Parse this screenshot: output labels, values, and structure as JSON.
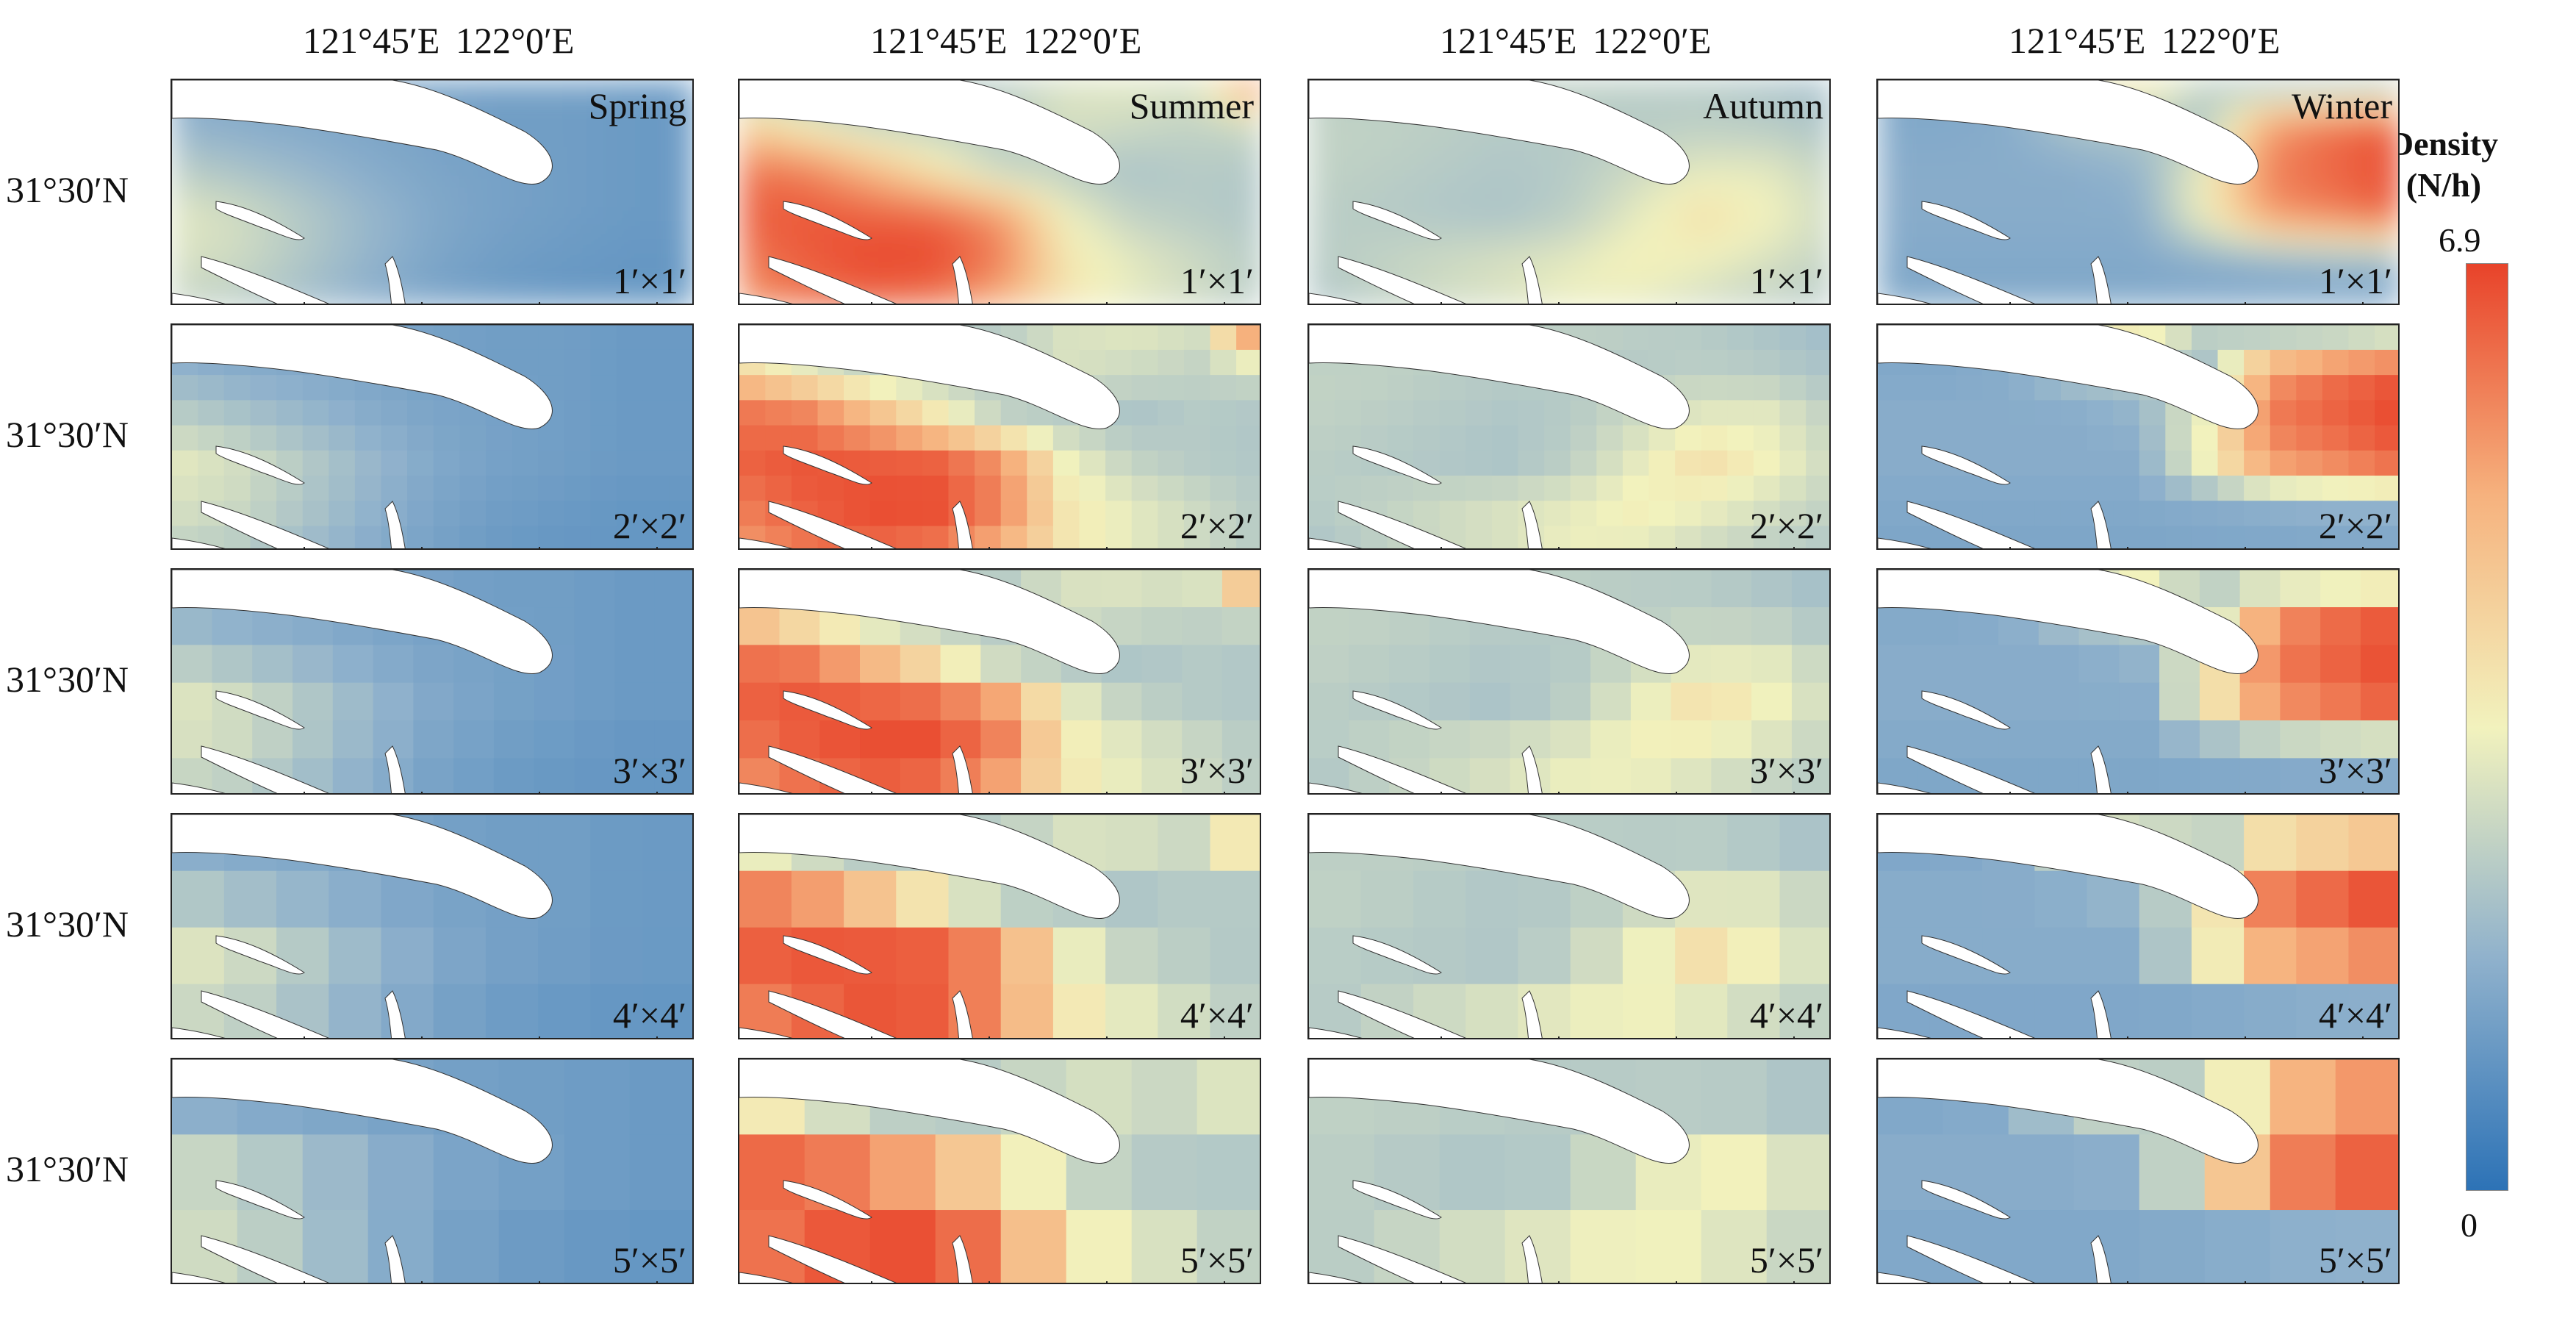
{
  "chart_data": {
    "type": "heatmap",
    "title": "",
    "seasons": [
      "Spring",
      "Summer",
      "Autumn",
      "Winter"
    ],
    "resolutions": [
      "1′×1′",
      "2′×2′",
      "3′×3′",
      "4′×4′",
      "5′×5′"
    ],
    "lon_ticks": [
      "121°45′E",
      "122°0′E"
    ],
    "lat_tick": "31°30′N",
    "colorbar": {
      "label": "Density (N/h)",
      "min": 0,
      "max": 6.9,
      "colors": [
        "#2c72b6",
        "#8fb1cc",
        "#f2f2bd",
        "#f6b27e",
        "#e8432a"
      ]
    },
    "grid_shape": [
      6,
      9
    ],
    "grids": {
      "Spring": [
        [
          1.5,
          1.5,
          1.5,
          1.4,
          1.3,
          1.2,
          1.2,
          1.1,
          1.1
        ],
        [
          1.8,
          1.6,
          1.5,
          1.4,
          1.3,
          1.2,
          1.2,
          1.1,
          1.1
        ],
        [
          2.5,
          2.2,
          1.9,
          1.6,
          1.4,
          1.3,
          1.2,
          1.1,
          1.1
        ],
        [
          3.2,
          2.9,
          2.4,
          1.9,
          1.5,
          1.3,
          1.2,
          1.1,
          1.1
        ],
        [
          3.0,
          2.8,
          2.3,
          1.8,
          1.4,
          1.2,
          1.1,
          1.0,
          1.0
        ],
        [
          2.6,
          2.4,
          2.0,
          1.6,
          1.3,
          1.1,
          1.0,
          1.0,
          1.0
        ]
      ],
      "Summer": [
        [
          2.0,
          2.0,
          2.1,
          2.3,
          2.5,
          3.0,
          3.2,
          3.0,
          6.9
        ],
        [
          4.5,
          3.5,
          2.7,
          2.5,
          2.4,
          3.0,
          2.8,
          2.6,
          2.8
        ],
        [
          6.2,
          6.0,
          5.0,
          3.8,
          2.6,
          2.4,
          2.2,
          2.4,
          2.3
        ],
        [
          6.4,
          6.6,
          6.5,
          6.4,
          5.6,
          3.4,
          2.6,
          2.4,
          2.3
        ],
        [
          6.0,
          6.5,
          6.8,
          6.8,
          6.0,
          3.8,
          3.2,
          2.8,
          2.4
        ],
        [
          5.5,
          6.0,
          6.3,
          6.0,
          5.0,
          3.8,
          3.2,
          2.8,
          2.4
        ]
      ],
      "Autumn": [
        [
          2.4,
          2.4,
          2.5,
          2.5,
          2.6,
          2.5,
          2.4,
          2.2,
          2.0
        ],
        [
          2.6,
          2.6,
          2.5,
          2.4,
          2.4,
          2.4,
          2.5,
          2.4,
          2.2
        ],
        [
          2.6,
          2.5,
          2.4,
          2.3,
          2.4,
          2.8,
          3.2,
          3.2,
          2.6
        ],
        [
          2.5,
          2.4,
          2.3,
          2.2,
          2.5,
          3.2,
          4.0,
          3.5,
          2.8
        ],
        [
          2.4,
          2.6,
          2.8,
          3.0,
          3.2,
          3.6,
          3.4,
          3.0,
          2.6
        ],
        [
          2.2,
          2.5,
          2.8,
          3.0,
          3.4,
          3.2,
          2.8,
          2.5,
          2.3
        ]
      ],
      "Winter": [
        [
          1.4,
          1.4,
          1.6,
          3.5,
          4.2,
          2.6,
          1.5,
          1.4,
          1.6
        ],
        [
          1.5,
          1.5,
          1.6,
          2.2,
          2.4,
          2.2,
          5.5,
          6.2,
          6.6
        ],
        [
          1.6,
          1.6,
          1.6,
          1.6,
          1.8,
          3.4,
          6.0,
          6.4,
          6.8
        ],
        [
          1.6,
          1.6,
          1.6,
          1.6,
          1.6,
          3.5,
          5.6,
          6.0,
          6.5
        ],
        [
          1.5,
          1.5,
          1.5,
          1.5,
          1.5,
          1.6,
          1.7,
          1.8,
          1.8
        ],
        [
          1.4,
          1.4,
          1.4,
          1.4,
          1.4,
          1.4,
          1.4,
          1.4,
          1.4
        ]
      ]
    }
  }
}
